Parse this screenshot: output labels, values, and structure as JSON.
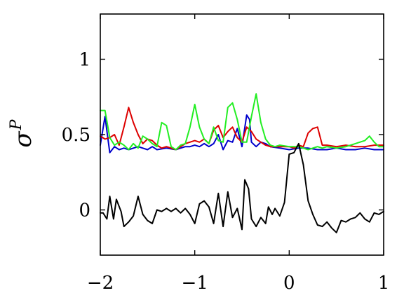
{
  "chart_data": {
    "type": "line",
    "title": "",
    "xlabel": "",
    "ylabel": "σ",
    "ylabel_superscript": "P",
    "xlim": [
      -2,
      1
    ],
    "ylim": [
      -0.3,
      1.3
    ],
    "grid": false,
    "x_ticks": [
      -2,
      -1,
      0,
      1
    ],
    "x_tick_labels": [
      "−2",
      "−1",
      "0",
      "1"
    ],
    "y_ticks": [
      0,
      0.5,
      1
    ],
    "y_tick_labels": [
      "0",
      "0.5",
      "1"
    ],
    "series": [
      {
        "color": "#0000cc",
        "points": [
          [
            -2.0,
            0.43
          ],
          [
            -1.95,
            0.62
          ],
          [
            -1.9,
            0.38
          ],
          [
            -1.85,
            0.42
          ],
          [
            -1.8,
            0.4
          ],
          [
            -1.75,
            0.41
          ],
          [
            -1.7,
            0.4
          ],
          [
            -1.6,
            0.42
          ],
          [
            -1.5,
            0.4
          ],
          [
            -1.45,
            0.42
          ],
          [
            -1.4,
            0.4
          ],
          [
            -1.3,
            0.41
          ],
          [
            -1.2,
            0.4
          ],
          [
            -1.1,
            0.42
          ],
          [
            -1.05,
            0.42
          ],
          [
            -1.0,
            0.43
          ],
          [
            -0.95,
            0.42
          ],
          [
            -0.9,
            0.44
          ],
          [
            -0.85,
            0.42
          ],
          [
            -0.8,
            0.44
          ],
          [
            -0.75,
            0.5
          ],
          [
            -0.7,
            0.4
          ],
          [
            -0.65,
            0.46
          ],
          [
            -0.6,
            0.45
          ],
          [
            -0.55,
            0.54
          ],
          [
            -0.5,
            0.42
          ],
          [
            -0.45,
            0.63
          ],
          [
            -0.42,
            0.6
          ],
          [
            -0.4,
            0.45
          ],
          [
            -0.35,
            0.42
          ],
          [
            -0.3,
            0.45
          ],
          [
            -0.25,
            0.44
          ],
          [
            -0.2,
            0.42
          ],
          [
            -0.1,
            0.41
          ],
          [
            0.0,
            0.4
          ],
          [
            0.1,
            0.41
          ],
          [
            0.2,
            0.41
          ],
          [
            0.3,
            0.4
          ],
          [
            0.4,
            0.4
          ],
          [
            0.5,
            0.41
          ],
          [
            0.6,
            0.4
          ],
          [
            0.7,
            0.4
          ],
          [
            0.8,
            0.41
          ],
          [
            0.9,
            0.4
          ],
          [
            1.0,
            0.4
          ]
        ]
      },
      {
        "color": "#dd0000",
        "points": [
          [
            -2.0,
            0.49
          ],
          [
            -1.95,
            0.47
          ],
          [
            -1.9,
            0.48
          ],
          [
            -1.85,
            0.5
          ],
          [
            -1.8,
            0.43
          ],
          [
            -1.75,
            0.55
          ],
          [
            -1.7,
            0.68
          ],
          [
            -1.65,
            0.58
          ],
          [
            -1.6,
            0.5
          ],
          [
            -1.55,
            0.44
          ],
          [
            -1.5,
            0.47
          ],
          [
            -1.45,
            0.46
          ],
          [
            -1.4,
            0.43
          ],
          [
            -1.35,
            0.41
          ],
          [
            -1.3,
            0.42
          ],
          [
            -1.25,
            0.41
          ],
          [
            -1.2,
            0.4
          ],
          [
            -1.1,
            0.44
          ],
          [
            -1.0,
            0.46
          ],
          [
            -0.95,
            0.45
          ],
          [
            -0.9,
            0.47
          ],
          [
            -0.85,
            0.44
          ],
          [
            -0.8,
            0.53
          ],
          [
            -0.75,
            0.56
          ],
          [
            -0.7,
            0.48
          ],
          [
            -0.65,
            0.52
          ],
          [
            -0.6,
            0.55
          ],
          [
            -0.55,
            0.48
          ],
          [
            -0.5,
            0.45
          ],
          [
            -0.45,
            0.55
          ],
          [
            -0.4,
            0.52
          ],
          [
            -0.35,
            0.47
          ],
          [
            -0.3,
            0.45
          ],
          [
            -0.25,
            0.43
          ],
          [
            -0.2,
            0.42
          ],
          [
            -0.1,
            0.42
          ],
          [
            0.0,
            0.42
          ],
          [
            0.05,
            0.41
          ],
          [
            0.1,
            0.43
          ],
          [
            0.15,
            0.42
          ],
          [
            0.2,
            0.51
          ],
          [
            0.25,
            0.54
          ],
          [
            0.3,
            0.55
          ],
          [
            0.35,
            0.43
          ],
          [
            0.4,
            0.43
          ],
          [
            0.5,
            0.42
          ],
          [
            0.6,
            0.43
          ],
          [
            0.7,
            0.42
          ],
          [
            0.8,
            0.42
          ],
          [
            0.9,
            0.43
          ],
          [
            1.0,
            0.43
          ]
        ]
      },
      {
        "color": "#22ee22",
        "points": [
          [
            -2.0,
            0.66
          ],
          [
            -1.95,
            0.66
          ],
          [
            -1.9,
            0.48
          ],
          [
            -1.85,
            0.43
          ],
          [
            -1.8,
            0.45
          ],
          [
            -1.75,
            0.43
          ],
          [
            -1.7,
            0.4
          ],
          [
            -1.65,
            0.44
          ],
          [
            -1.6,
            0.41
          ],
          [
            -1.55,
            0.49
          ],
          [
            -1.5,
            0.47
          ],
          [
            -1.45,
            0.44
          ],
          [
            -1.4,
            0.42
          ],
          [
            -1.35,
            0.58
          ],
          [
            -1.3,
            0.56
          ],
          [
            -1.25,
            0.42
          ],
          [
            -1.2,
            0.4
          ],
          [
            -1.15,
            0.43
          ],
          [
            -1.1,
            0.44
          ],
          [
            -1.05,
            0.55
          ],
          [
            -1.0,
            0.7
          ],
          [
            -0.95,
            0.55
          ],
          [
            -0.9,
            0.47
          ],
          [
            -0.85,
            0.44
          ],
          [
            -0.8,
            0.55
          ],
          [
            -0.75,
            0.46
          ],
          [
            -0.7,
            0.45
          ],
          [
            -0.65,
            0.68
          ],
          [
            -0.6,
            0.71
          ],
          [
            -0.55,
            0.6
          ],
          [
            -0.5,
            0.45
          ],
          [
            -0.45,
            0.45
          ],
          [
            -0.4,
            0.62
          ],
          [
            -0.35,
            0.77
          ],
          [
            -0.3,
            0.58
          ],
          [
            -0.25,
            0.47
          ],
          [
            -0.2,
            0.43
          ],
          [
            -0.15,
            0.42
          ],
          [
            -0.1,
            0.43
          ],
          [
            0.0,
            0.42
          ],
          [
            0.1,
            0.42
          ],
          [
            0.2,
            0.4
          ],
          [
            0.3,
            0.42
          ],
          [
            0.35,
            0.41
          ],
          [
            0.4,
            0.42
          ],
          [
            0.5,
            0.41
          ],
          [
            0.6,
            0.42
          ],
          [
            0.7,
            0.44
          ],
          [
            0.8,
            0.46
          ],
          [
            0.85,
            0.49
          ],
          [
            0.9,
            0.45
          ],
          [
            0.95,
            0.42
          ],
          [
            1.0,
            0.42
          ]
        ]
      },
      {
        "color": "#000000",
        "points": [
          [
            -2.0,
            -0.02
          ],
          [
            -1.97,
            -0.02
          ],
          [
            -1.93,
            -0.06
          ],
          [
            -1.9,
            0.09
          ],
          [
            -1.86,
            -0.06
          ],
          [
            -1.83,
            0.07
          ],
          [
            -1.78,
            -0.01
          ],
          [
            -1.75,
            -0.11
          ],
          [
            -1.7,
            -0.08
          ],
          [
            -1.65,
            -0.04
          ],
          [
            -1.6,
            0.09
          ],
          [
            -1.55,
            -0.03
          ],
          [
            -1.5,
            -0.07
          ],
          [
            -1.45,
            -0.09
          ],
          [
            -1.4,
            0.0
          ],
          [
            -1.35,
            -0.01
          ],
          [
            -1.3,
            0.01
          ],
          [
            -1.25,
            -0.01
          ],
          [
            -1.2,
            0.01
          ],
          [
            -1.15,
            -0.02
          ],
          [
            -1.1,
            0.01
          ],
          [
            -1.05,
            -0.03
          ],
          [
            -1.0,
            -0.09
          ],
          [
            -0.95,
            0.04
          ],
          [
            -0.9,
            0.06
          ],
          [
            -0.85,
            0.02
          ],
          [
            -0.8,
            -0.09
          ],
          [
            -0.75,
            0.11
          ],
          [
            -0.7,
            -0.11
          ],
          [
            -0.65,
            0.12
          ],
          [
            -0.6,
            -0.05
          ],
          [
            -0.55,
            0.01
          ],
          [
            -0.5,
            -0.13
          ],
          [
            -0.47,
            0.2
          ],
          [
            -0.43,
            0.14
          ],
          [
            -0.4,
            -0.06
          ],
          [
            -0.35,
            -0.11
          ],
          [
            -0.3,
            -0.05
          ],
          [
            -0.25,
            -0.09
          ],
          [
            -0.22,
            0.02
          ],
          [
            -0.18,
            -0.03
          ],
          [
            -0.15,
            0.01
          ],
          [
            -0.1,
            -0.04
          ],
          [
            -0.05,
            0.05
          ],
          [
            0.0,
            0.37
          ],
          [
            0.05,
            0.38
          ],
          [
            0.1,
            0.44
          ],
          [
            0.15,
            0.3
          ],
          [
            0.2,
            0.06
          ],
          [
            0.25,
            -0.03
          ],
          [
            0.3,
            -0.1
          ],
          [
            0.35,
            -0.11
          ],
          [
            0.4,
            -0.08
          ],
          [
            0.45,
            -0.12
          ],
          [
            0.5,
            -0.15
          ],
          [
            0.55,
            -0.07
          ],
          [
            0.6,
            -0.08
          ],
          [
            0.65,
            -0.06
          ],
          [
            0.7,
            -0.05
          ],
          [
            0.75,
            -0.02
          ],
          [
            0.8,
            -0.06
          ],
          [
            0.85,
            -0.08
          ],
          [
            0.9,
            -0.02
          ],
          [
            0.95,
            -0.03
          ],
          [
            1.0,
            -0.01
          ]
        ]
      }
    ]
  }
}
